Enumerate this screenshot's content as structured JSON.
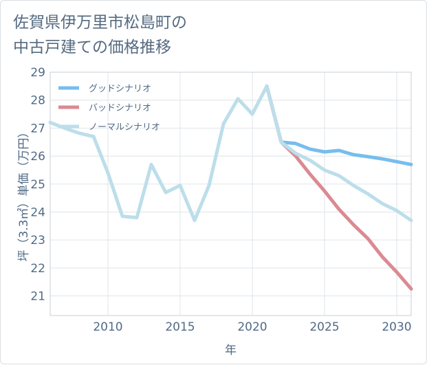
{
  "title_lines": [
    "佐賀県伊万里市松島町の",
    "中古戸建ての価格推移"
  ],
  "chart_data": {
    "type": "line",
    "xlabel": "年",
    "ylabel": "坪（3.3㎡）単価（万円）",
    "xlim": [
      2006,
      2031
    ],
    "ylim": [
      20.3,
      29
    ],
    "x_ticks": [
      2010,
      2015,
      2020,
      2025,
      2030
    ],
    "y_ticks": [
      21,
      22,
      23,
      24,
      25,
      26,
      27,
      28,
      29
    ],
    "grid": true,
    "legend_position": "top-left",
    "series": [
      {
        "name": "グッドシナリオ",
        "color": "#77bdee",
        "x": [
          2021,
          2022,
          2023,
          2024,
          2025,
          2026,
          2027,
          2028,
          2029,
          2030,
          2031
        ],
        "y": [
          28.5,
          26.5,
          26.45,
          26.25,
          26.15,
          26.2,
          26.05,
          25.98,
          25.9,
          25.8,
          25.7
        ]
      },
      {
        "name": "バッドシナリオ",
        "color": "#db8a92",
        "x": [
          2021,
          2022,
          2023,
          2024,
          2025,
          2026,
          2027,
          2028,
          2029,
          2030,
          2031
        ],
        "y": [
          28.5,
          26.5,
          26.0,
          25.35,
          24.75,
          24.1,
          23.55,
          23.05,
          22.4,
          21.85,
          21.25
        ]
      },
      {
        "name": "ノーマルシナリオ",
        "color": "#bcdeea",
        "x": [
          2006,
          2007,
          2008,
          2009,
          2010,
          2011,
          2012,
          2013,
          2014,
          2015,
          2016,
          2017,
          2018,
          2019,
          2020,
          2021,
          2022,
          2023,
          2024,
          2025,
          2026,
          2027,
          2028,
          2029,
          2030,
          2031
        ],
        "y": [
          27.2,
          27.0,
          26.82,
          26.7,
          25.4,
          23.85,
          23.8,
          25.7,
          24.7,
          24.95,
          23.7,
          24.95,
          27.15,
          28.05,
          27.5,
          28.5,
          26.5,
          26.1,
          25.85,
          25.5,
          25.3,
          24.95,
          24.65,
          24.3,
          24.05,
          23.7
        ]
      }
    ]
  }
}
